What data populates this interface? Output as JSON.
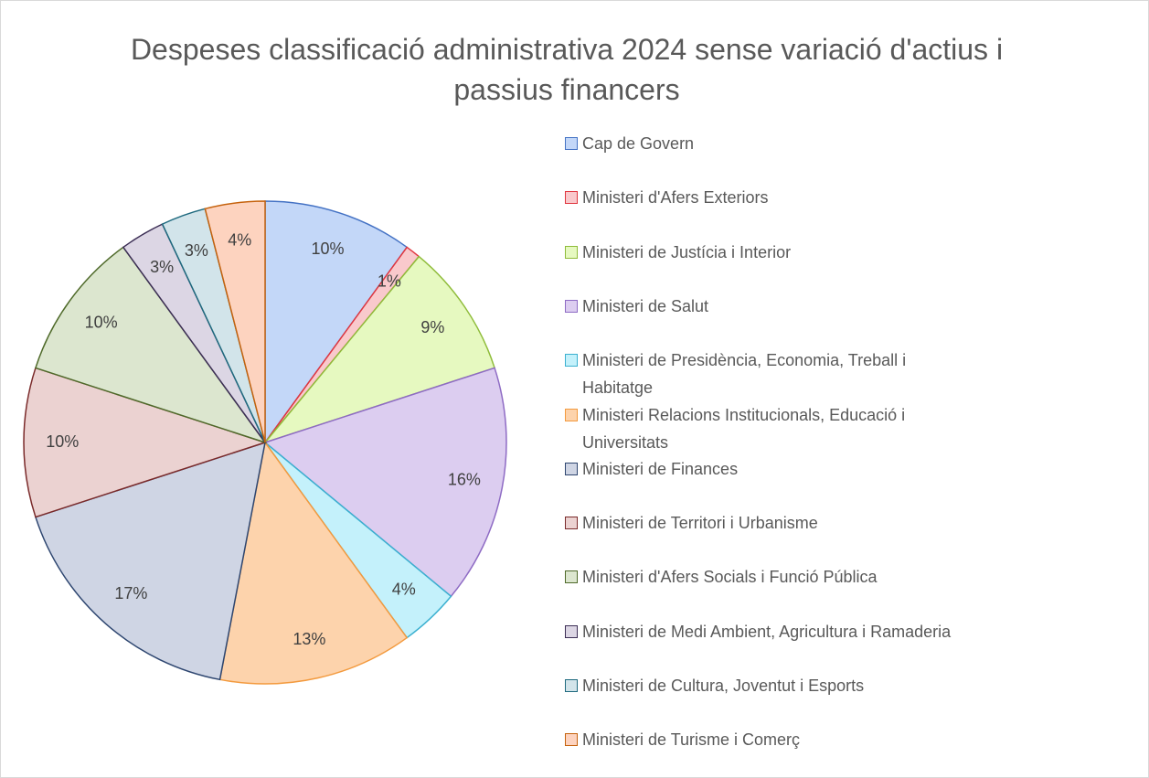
{
  "chart_data": {
    "type": "pie",
    "title": "Despeses classificació administrativa 2024 sense variació d'actius i passius financers",
    "categories": [
      "Cap de Govern",
      "Ministeri d'Afers Exteriors",
      "Ministeri de Justícia i Interior",
      "Ministeri de Salut",
      "Ministeri de Presidència, Economia, Treball i Habitatge",
      "Ministeri Relacions Institucionals, Educació i Universitats",
      "Ministeri de Finances",
      "Ministeri de Territori i Urbanisme",
      "Ministeri d'Afers Socials i Funció Pública",
      "Ministeri de Medi Ambient, Agricultura i Ramaderia",
      "Ministeri de Cultura, Joventut i Esports",
      "Ministeri de Turisme i Comerç"
    ],
    "values": [
      10,
      1,
      9,
      16,
      4,
      13,
      17,
      10,
      10,
      3,
      3,
      4
    ],
    "value_labels": [
      "10%",
      "1%",
      "9%",
      "16%",
      "4%",
      "13%",
      "17%",
      "10%",
      "10%",
      "3%",
      "3%",
      "4%"
    ],
    "colors": [
      "#c3d7f8",
      "#f9c9cc",
      "#e6f9c0",
      "#dccdf0",
      "#c4f1fb",
      "#fdd3ac",
      "#cfd5e4",
      "#ebd2d1",
      "#dce6cf",
      "#dcd6e4",
      "#d2e4ea",
      "#fdd3bf"
    ],
    "border_colors": [
      "#4472c4",
      "#e0363f",
      "#8fbc3a",
      "#8e6bc4",
      "#3bb0d0",
      "#f39a3e",
      "#2e4670",
      "#7a2a2a",
      "#4f6a2a",
      "#3c2e55",
      "#1f6a7f",
      "#c5620d"
    ],
    "legend": "right"
  }
}
